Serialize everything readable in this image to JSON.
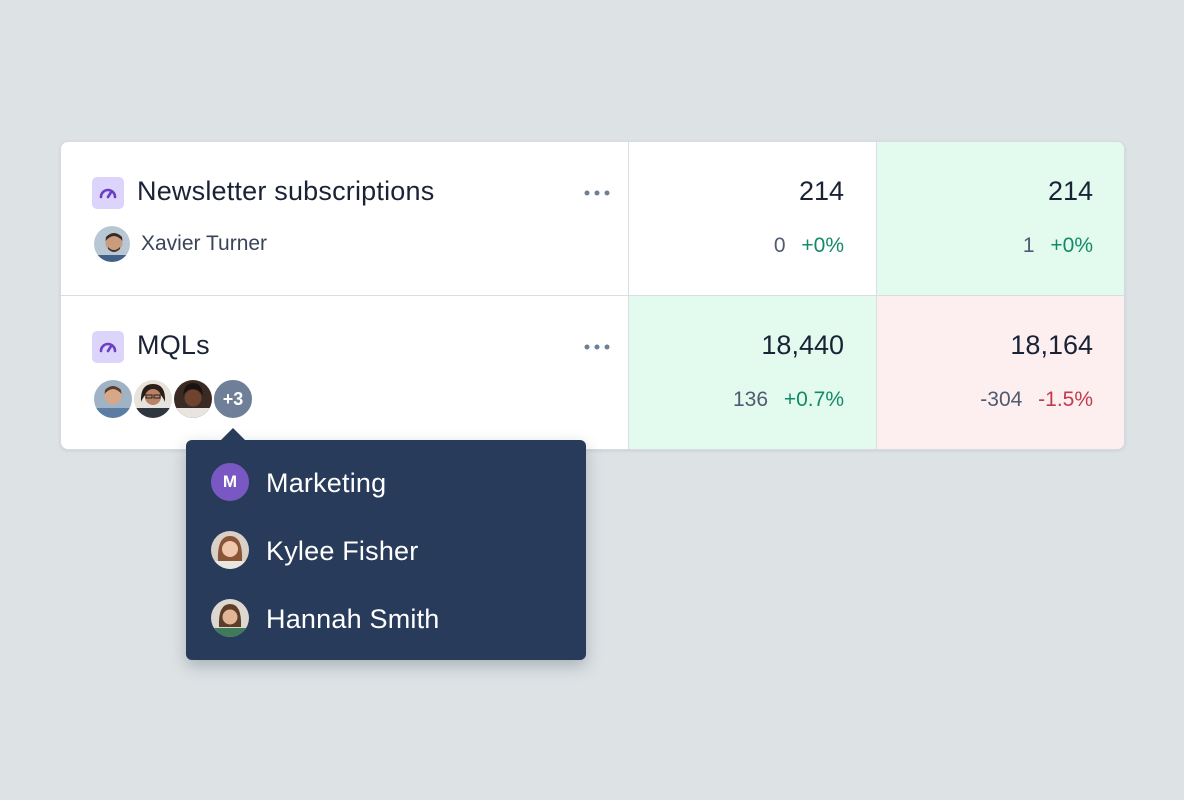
{
  "rows": [
    {
      "title": "Newsletter subscriptions",
      "icon": "gauge-icon",
      "owner": "Xavier Turner",
      "values": [
        {
          "value": "214",
          "delta": "0",
          "pct": "+0%",
          "trend": "up",
          "status": "neutral"
        },
        {
          "value": "214",
          "delta": "1",
          "pct": "+0%",
          "trend": "up",
          "status": "positive"
        }
      ]
    },
    {
      "title": "MQLs",
      "icon": "gauge-icon",
      "extra_owners": "+3",
      "values": [
        {
          "value": "18,440",
          "delta": "136",
          "pct": "+0.7%",
          "trend": "up",
          "status": "positive"
        },
        {
          "value": "18,164",
          "delta": "-304",
          "pct": "-1.5%",
          "trend": "down",
          "status": "negative"
        }
      ]
    }
  ],
  "tooltip": {
    "items": [
      {
        "label": "Marketing",
        "avatar_initial": "M"
      },
      {
        "label": "Kylee Fisher"
      },
      {
        "label": "Hannah Smith"
      }
    ]
  },
  "colors": {
    "positive_bg": "#e3faee",
    "negative_bg": "#fdeeef",
    "positive_text": "#138a6a",
    "negative_text": "#c23b4d",
    "tooltip_bg": "#283b5b",
    "icon_bg": "#ddd4fb",
    "icon_fg": "#6a3fc4"
  }
}
